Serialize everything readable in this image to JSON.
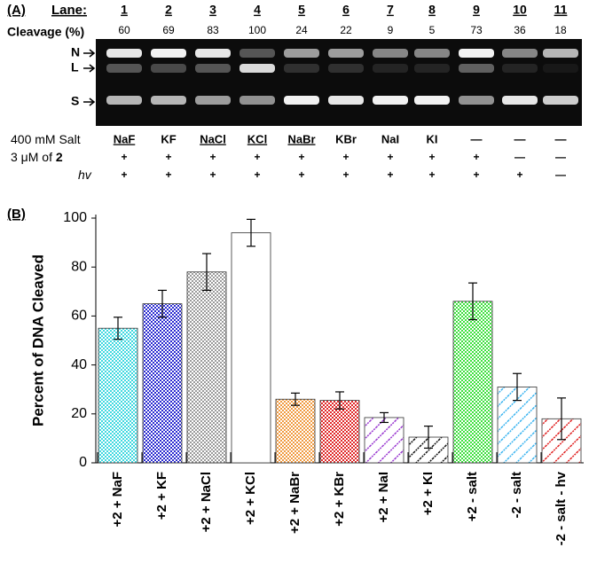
{
  "panel_a": {
    "label": "(A)",
    "lane_header": "Lane:",
    "lanes": [
      "1",
      "2",
      "3",
      "4",
      "5",
      "6",
      "7",
      "8",
      "9",
      "10",
      "11"
    ],
    "cleavage_header": "Cleavage (%)",
    "cleavage": [
      "60",
      "69",
      "83",
      "100",
      "24",
      "22",
      "9",
      "5",
      "73",
      "36",
      "18"
    ],
    "bands": [
      "N",
      "L",
      "S"
    ],
    "rows": [
      {
        "label": [
          "400 mM Salt"
        ],
        "cells": [
          "NaF",
          "KF",
          "NaCl",
          "KCl",
          "NaBr",
          "KBr",
          "NaI",
          "KI",
          "—",
          "—",
          "—"
        ]
      },
      {
        "label": [
          "3 μM of ",
          "2"
        ],
        "cells": [
          "+",
          "+",
          "+",
          "+",
          "+",
          "+",
          "+",
          "+",
          "+",
          "—",
          "—"
        ]
      },
      {
        "label": [
          "hv"
        ],
        "cells": [
          "+",
          "+",
          "+",
          "+",
          "+",
          "+",
          "+",
          "+",
          "+",
          "+",
          "—"
        ]
      }
    ]
  },
  "chart_data": {
    "type": "bar",
    "panel_label": "(B)",
    "y_label": "Percent of DNA Cleaved",
    "categories": [
      "+2 + NaF",
      "+2 + KF",
      "+2 + NaCl",
      "+2 + KCl",
      "+2 + NaBr",
      "+2 + KBr",
      "+2 + NaI",
      "+2 + KI",
      "+2 - salt",
      "-2 - salt",
      "-2 - salt - hv"
    ],
    "values": [
      55,
      65,
      78,
      94,
      26,
      25.5,
      18.5,
      10.5,
      66,
      31,
      18
    ],
    "errors": [
      4.5,
      5.5,
      7.5,
      5.5,
      2.5,
      3.5,
      2,
      4.5,
      7.5,
      5.5,
      8.5
    ],
    "colors": [
      "#3fd8e0",
      "#2a2ad0",
      "#9a9a9a",
      "#ffffff",
      "#f09a40",
      "#e02828",
      "#9a3ad0",
      "#111111",
      "#3ee03e",
      "#3ab4f0",
      "#e02020"
    ],
    "patterns": [
      "checker",
      "checker",
      "checker",
      "none",
      "checker",
      "checker",
      "stripe",
      "stripe",
      "checker",
      "stripe",
      "stripe"
    ],
    "ylim": [
      0,
      100
    ],
    "yticks": [
      0,
      20,
      40,
      60,
      80,
      100
    ]
  }
}
